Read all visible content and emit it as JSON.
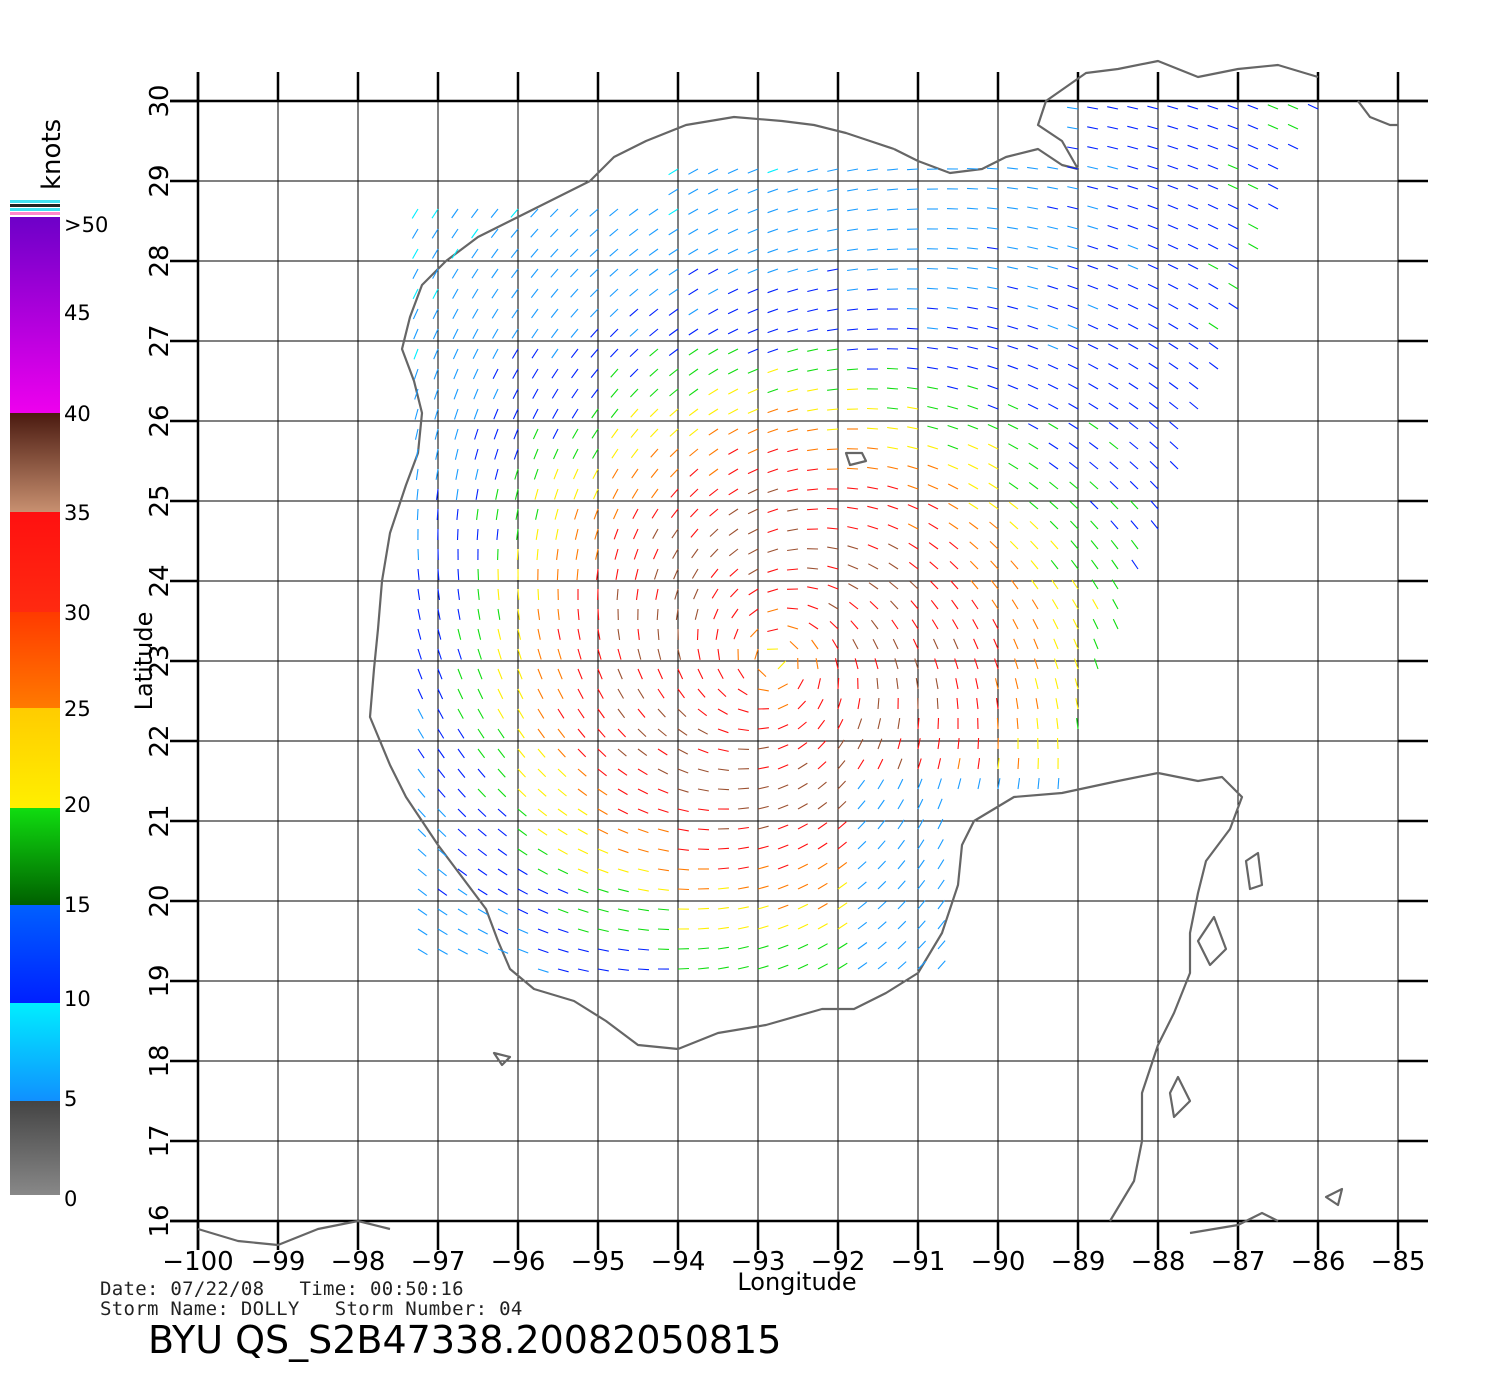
{
  "legend": {
    "unit": "knots",
    "labels": [
      ">50",
      "45",
      "40",
      "35",
      "30",
      "25",
      "20",
      "15",
      "10",
      "5",
      "0"
    ],
    "colors": {
      "gt50": "#6d00c8",
      "45": "#b400d2",
      "40": "#ee00ee",
      "35": "#4a1a10",
      "30": "#ff1010",
      "25": "#ff7a00",
      "20": "#ffef00",
      "15": "#10dd10",
      "10": "#0020ff",
      "5": "#00eeff",
      "0": "#444444"
    }
  },
  "axes": {
    "xlabel": "Longitude",
    "ylabel": "Latitude",
    "x_ticks": [
      "−100",
      "−99",
      "−98",
      "−97",
      "−96",
      "−95",
      "−94",
      "−93",
      "−92",
      "−91",
      "−90",
      "−89",
      "−88",
      "−87",
      "−86",
      "−85"
    ],
    "y_ticks": [
      "16",
      "17",
      "18",
      "19",
      "20",
      "21",
      "22",
      "23",
      "24",
      "25",
      "26",
      "27",
      "28",
      "29",
      "30"
    ],
    "lon_range": [
      -100,
      -85
    ],
    "lat_range": [
      16,
      30
    ]
  },
  "info": {
    "date_line": "Date: 07/22/08   Time: 00:50:16",
    "storm_line": "Storm Name: DOLLY   Storm Number: 04"
  },
  "title": "BYU QS_S2B47338.20082050815",
  "chart_data": {
    "type": "scatter",
    "description_units": "knots",
    "xlabel": "Longitude",
    "ylabel": "Latitude",
    "xlim": [
      -100,
      -85
    ],
    "ylim": [
      16,
      30
    ],
    "grid": true,
    "legend": "left colorbar",
    "storm_center_approx": {
      "lon": -92.8,
      "lat": 23.0
    }
  }
}
